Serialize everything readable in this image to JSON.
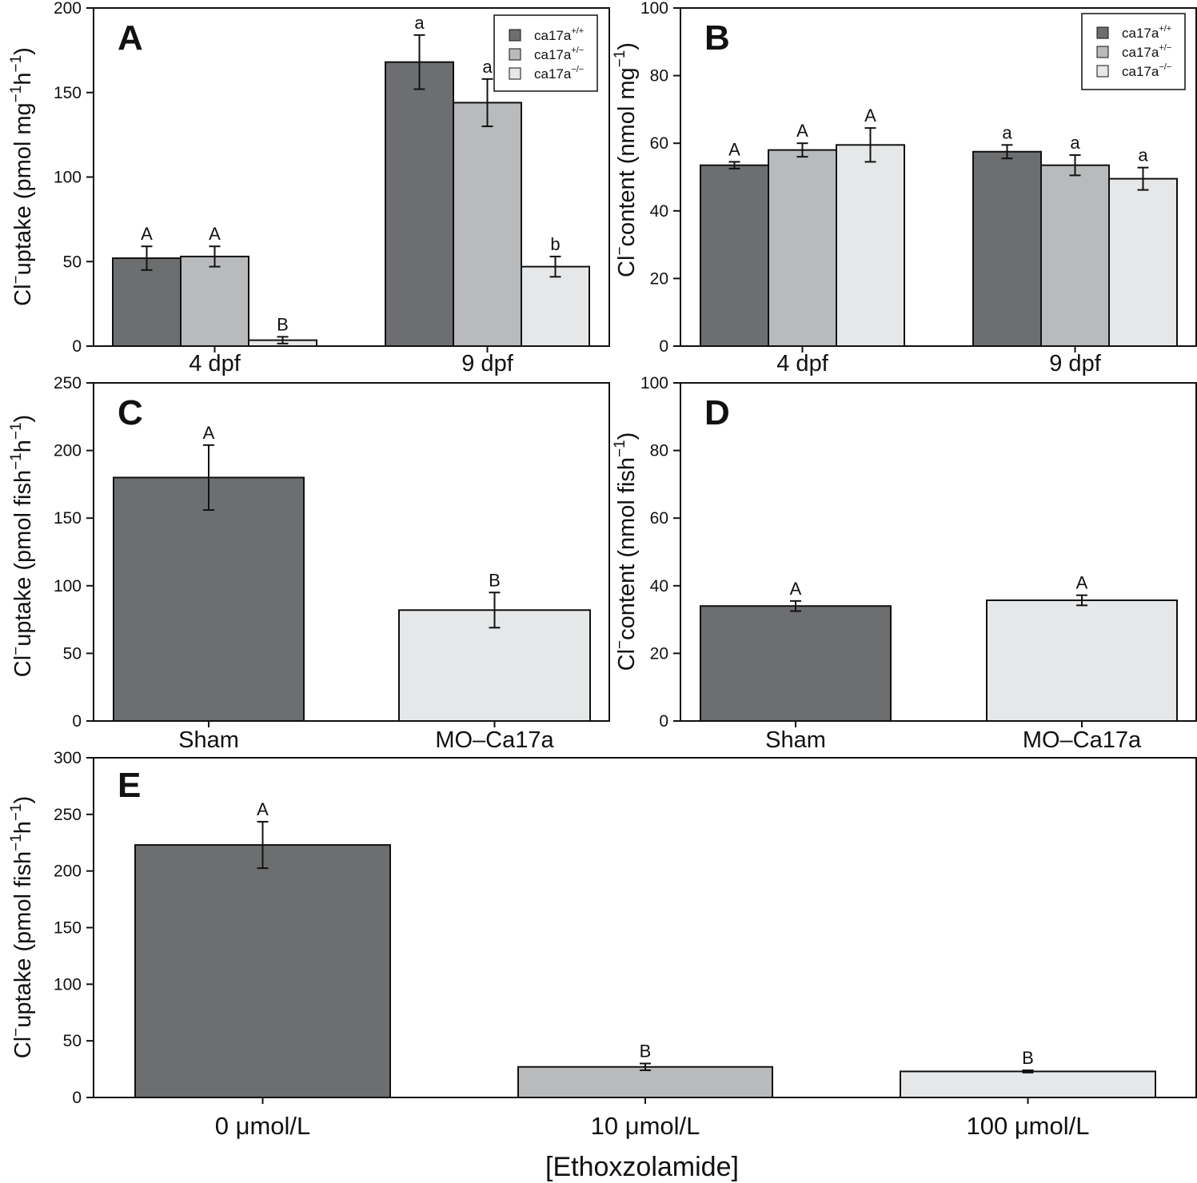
{
  "colors": {
    "dark": "#6d6e70",
    "mid": "#b9babc",
    "light": "#e6e7e8",
    "stroke": "#111111"
  },
  "panel_labels": {
    "A": "A",
    "B": "B",
    "C": "C",
    "D": "D",
    "E": "E"
  },
  "ylabels": {
    "A": {
      "pre": "Cl",
      "sup1": "−",
      "mid": "uptake (pmol mg",
      "sup2": "−1",
      "mid2": "h",
      "sup3": "−1",
      "post": ")"
    },
    "B": {
      "pre": "Cl",
      "sup1": "−",
      "mid": "content (nmol mg",
      "sup2": "−1",
      "post": ")"
    },
    "C": {
      "pre": "Cl",
      "sup1": "−",
      "mid": "uptake (pmol fish",
      "sup2": "−1",
      "mid2": "h",
      "sup3": "−1",
      "post": ")"
    },
    "D": {
      "pre": "Cl",
      "sup1": "−",
      "mid": "content (nmol fish",
      "sup2": "−1",
      "post": ")"
    },
    "E": {
      "pre": "Cl",
      "sup1": "−",
      "mid": "uptake (pmol fish",
      "sup2": "−1",
      "mid2": "h",
      "sup3": "−1",
      "post": ")"
    }
  },
  "legend": [
    {
      "base": "ca17a",
      "sup": "+/+",
      "color": "dark"
    },
    {
      "base": "ca17a",
      "sup": "+/−",
      "color": "mid"
    },
    {
      "base": "ca17a",
      "sup": "−/−",
      "color": "light"
    }
  ],
  "xlabel_E": "[Ethoxzolamide]",
  "chart_data": [
    {
      "panel": "A",
      "type": "bar",
      "categories": [
        "4 dpf",
        "9 dpf"
      ],
      "ylim": [
        0,
        200
      ],
      "yticks": [
        0,
        50,
        100,
        150,
        200
      ],
      "legend_position": "top-right",
      "series": [
        {
          "name": "ca17a+/+",
          "color": "dark",
          "values": [
            52,
            168
          ],
          "errors": [
            7,
            16
          ],
          "letters": [
            "A",
            "a"
          ]
        },
        {
          "name": "ca17a+/−",
          "color": "mid",
          "values": [
            53,
            144
          ],
          "errors": [
            6,
            14
          ],
          "letters": [
            "A",
            "a"
          ]
        },
        {
          "name": "ca17a−/−",
          "color": "light",
          "values": [
            3.5,
            47
          ],
          "errors": [
            2,
            6
          ],
          "letters": [
            "B",
            "b"
          ]
        }
      ]
    },
    {
      "panel": "B",
      "type": "bar",
      "categories": [
        "4 dpf",
        "9 dpf"
      ],
      "ylim": [
        0,
        100
      ],
      "yticks": [
        0,
        20,
        40,
        60,
        80,
        100
      ],
      "legend_position": "top-right",
      "series": [
        {
          "name": "ca17a+/+",
          "color": "dark",
          "values": [
            53.5,
            57.5
          ],
          "errors": [
            1,
            2
          ],
          "letters": [
            "A",
            "a"
          ]
        },
        {
          "name": "ca17a+/−",
          "color": "mid",
          "values": [
            58,
            53.5
          ],
          "errors": [
            2,
            3
          ],
          "letters": [
            "A",
            "a"
          ]
        },
        {
          "name": "ca17a−/−",
          "color": "light",
          "values": [
            59.5,
            49.5
          ],
          "errors": [
            5,
            3.3
          ],
          "letters": [
            "A",
            "a"
          ]
        }
      ]
    },
    {
      "panel": "C",
      "type": "bar",
      "categories": [
        "Sham",
        "MO–Ca17a"
      ],
      "ylim": [
        0,
        250
      ],
      "yticks": [
        0,
        50,
        100,
        150,
        200,
        250
      ],
      "values": [
        180,
        82
      ],
      "errors": [
        24,
        13
      ],
      "colors": [
        "dark",
        "light"
      ],
      "letters": [
        "A",
        "B"
      ]
    },
    {
      "panel": "D",
      "type": "bar",
      "categories": [
        "Sham",
        "MO–Ca17a"
      ],
      "ylim": [
        0,
        100
      ],
      "yticks": [
        0,
        20,
        40,
        60,
        80,
        100
      ],
      "values": [
        34,
        35.7
      ],
      "errors": [
        1.5,
        1.5
      ],
      "colors": [
        "dark",
        "light"
      ],
      "letters": [
        "A",
        "A"
      ]
    },
    {
      "panel": "E",
      "type": "bar",
      "categories": [
        "0 μmol/L",
        "10 μmol/L",
        "100 μmol/L"
      ],
      "xlabel": "[Ethoxzolamide]",
      "ylim": [
        0,
        300
      ],
      "yticks": [
        0,
        50,
        100,
        150,
        200,
        250,
        300
      ],
      "values": [
        223,
        27,
        23
      ],
      "errors": [
        20.5,
        3,
        1
      ],
      "colors": [
        "dark",
        "mid",
        "light"
      ],
      "letters": [
        "A",
        "B",
        "B"
      ]
    }
  ]
}
